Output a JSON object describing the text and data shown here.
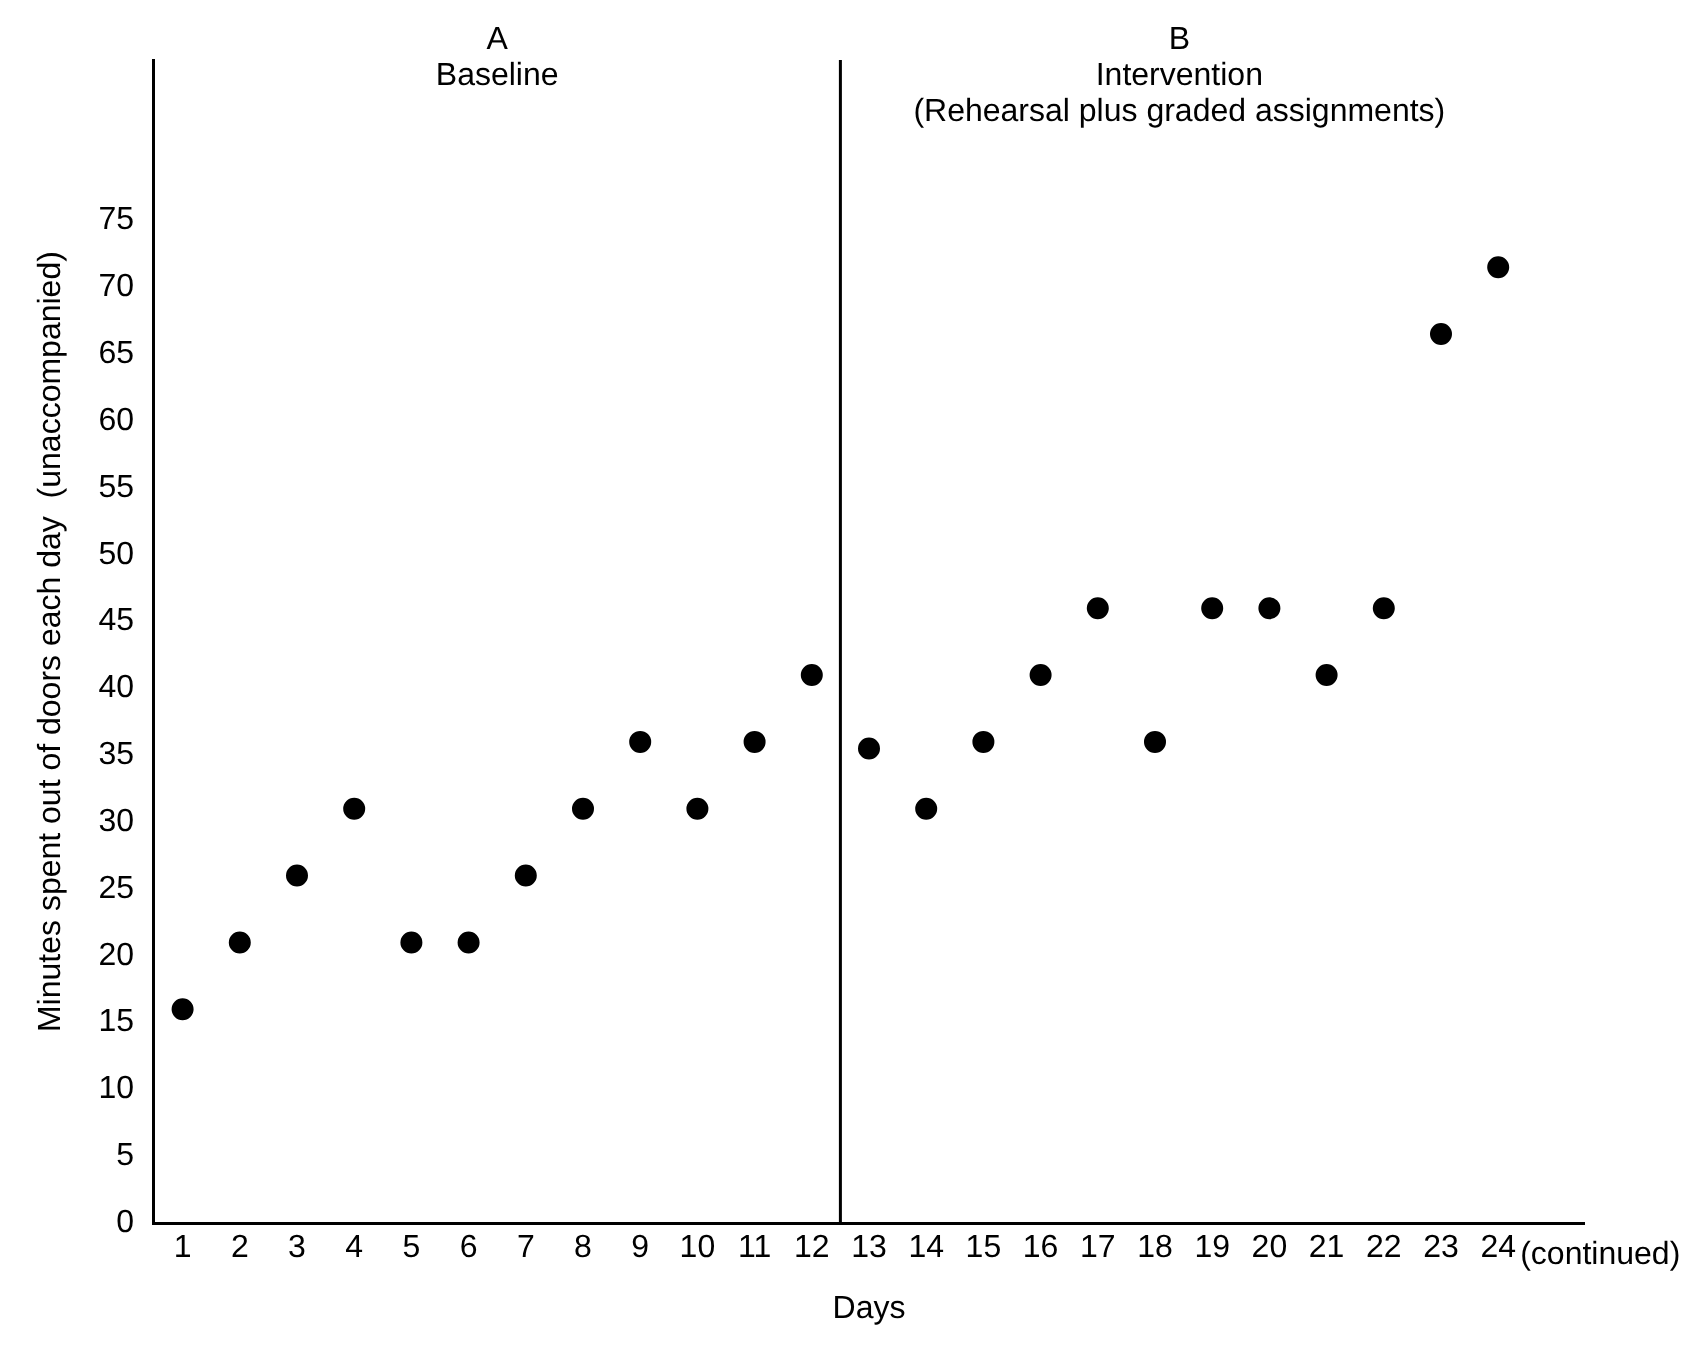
{
  "chart_data": {
    "type": "scatter",
    "xlabel": "Days",
    "ylabel": "Minutes spent out of doors each day  (unaccompanied)",
    "x": [
      1,
      2,
      3,
      4,
      5,
      6,
      7,
      8,
      9,
      10,
      11,
      12,
      13,
      14,
      15,
      16,
      17,
      18,
      19,
      20,
      21,
      22,
      23,
      24
    ],
    "series": [
      {
        "color": "#000000",
        "values": [
          16,
          21,
          26,
          31,
          21,
          21,
          26,
          31,
          36,
          31,
          36,
          41,
          35.5,
          31,
          36,
          41,
          46,
          36,
          46,
          46,
          41,
          46,
          66.5,
          71.5
        ]
      }
    ],
    "xlim": [
      0.5,
      25.5
    ],
    "xticks": [
      1,
      2,
      3,
      4,
      5,
      6,
      7,
      8,
      9,
      10,
      11,
      12,
      13,
      14,
      15,
      16,
      17,
      18,
      19,
      20,
      21,
      22,
      23,
      24
    ],
    "ylim": [
      0,
      87
    ],
    "yticks": [
      0,
      5,
      10,
      15,
      20,
      25,
      30,
      35,
      40,
      45,
      50,
      55,
      60,
      65,
      70,
      75
    ],
    "ref_lines": [
      {
        "axis": "x",
        "value": 12.5,
        "label": null,
        "color": "#000000"
      }
    ],
    "annotations": [
      "A\nBaseline",
      "B\nIntervention\n(Rehearsal plus graded assignments)",
      "(continued)"
    ],
    "grid": false,
    "legend": false,
    "marker": "circle"
  }
}
